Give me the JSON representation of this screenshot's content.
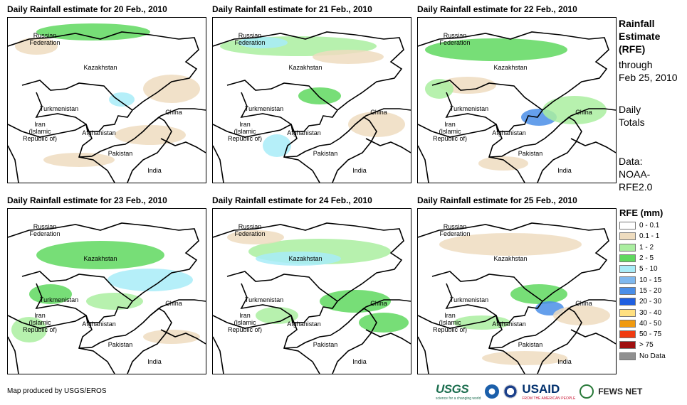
{
  "panels": [
    {
      "title": "Daily Rainfall estimate for 20 Feb., 2010"
    },
    {
      "title": "Daily Rainfall estimate for 21 Feb., 2010"
    },
    {
      "title": "Daily Rainfall estimate for 22 Feb., 2010"
    },
    {
      "title": "Daily Rainfall estimate for 23 Feb., 2010"
    },
    {
      "title": "Daily Rainfall estimate for 24 Feb., 2010"
    },
    {
      "title": "Daily Rainfall estimate for 25 Feb., 2010"
    }
  ],
  "map_labels": {
    "russia": "Russian\nFederation",
    "kazakhstan": "Kazakhstan",
    "turkmenistan": "Turkmenistan",
    "china": "China",
    "iran": "Iran\n(Islamic Republic of)",
    "afghanistan": "Afghanistan",
    "pakistan": "Pakistan",
    "india": "India"
  },
  "side": {
    "title": "Rainfall\nEstimate\n(RFE)",
    "through": "through\nFeb 25, 2010",
    "totals": "Daily\nTotals",
    "data": "Data:\nNOAA-\nRFE2.0"
  },
  "legend": {
    "title": "RFE (mm)",
    "items": [
      {
        "label": "0 - 0.1",
        "color": "#ffffff"
      },
      {
        "label": "0.1 - 1",
        "color": "#eedcbf"
      },
      {
        "label": "1 - 2",
        "color": "#aaeea0"
      },
      {
        "label": "2 - 5",
        "color": "#5fd85f"
      },
      {
        "label": "5 - 10",
        "color": "#a8ecf8"
      },
      {
        "label": "10 - 15",
        "color": "#7fb8ee"
      },
      {
        "label": "15 - 20",
        "color": "#4a8ee8"
      },
      {
        "label": "20 - 30",
        "color": "#1f5fe0"
      },
      {
        "label": "30 - 40",
        "color": "#ffe080"
      },
      {
        "label": "40 - 50",
        "color": "#f09a10"
      },
      {
        "label": "50 - 75",
        "color": "#f03a10"
      },
      {
        "label": "> 75",
        "color": "#a01010"
      },
      {
        "label": "No Data",
        "color": "#909090"
      }
    ]
  },
  "credit": "Map produced by USGS/EROS",
  "logos": {
    "usgs": "USGS",
    "usgs_tagline": "science for a changing world",
    "usaid": "USAID",
    "usaid_tagline": "FROM THE AMERICAN PEOPLE",
    "fews": "FEWS NET"
  },
  "colors": {
    "tan": "#eedcbf",
    "green_light": "#aaeea0",
    "green": "#5fd85f",
    "blue_light": "#a8ecf8",
    "blue": "#4a8ee8"
  }
}
